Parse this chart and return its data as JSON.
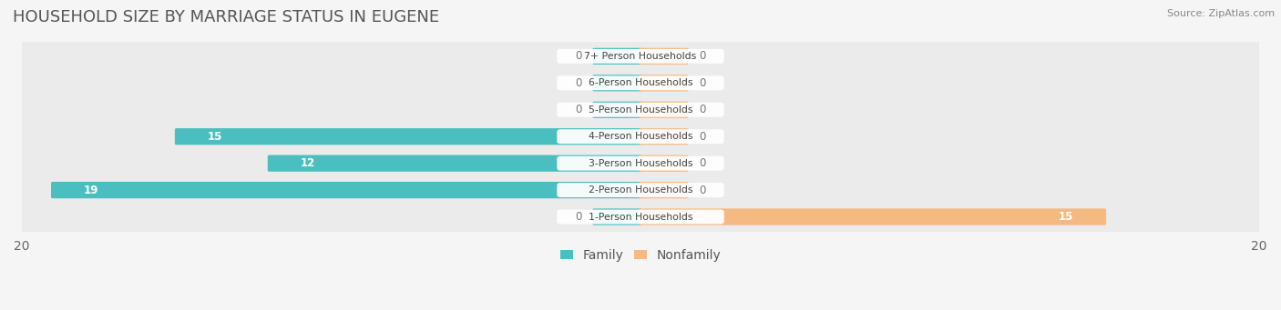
{
  "title": "HOUSEHOLD SIZE BY MARRIAGE STATUS IN EUGENE",
  "source": "Source: ZipAtlas.com",
  "categories": [
    "7+ Person Households",
    "6-Person Households",
    "5-Person Households",
    "4-Person Households",
    "3-Person Households",
    "2-Person Households",
    "1-Person Households"
  ],
  "family_values": [
    0,
    0,
    0,
    15,
    12,
    19,
    0
  ],
  "nonfamily_values": [
    0,
    0,
    0,
    0,
    0,
    0,
    15
  ],
  "family_color": "#4BBFBF",
  "nonfamily_color": "#F5B982",
  "stub_size": 1.5,
  "xlim": 20,
  "background_color": "#f5f5f5",
  "row_bg_color": "#ebebeb",
  "label_bg_color": "#ffffff",
  "title_fontsize": 13,
  "axis_fontsize": 10,
  "legend_fontsize": 10
}
